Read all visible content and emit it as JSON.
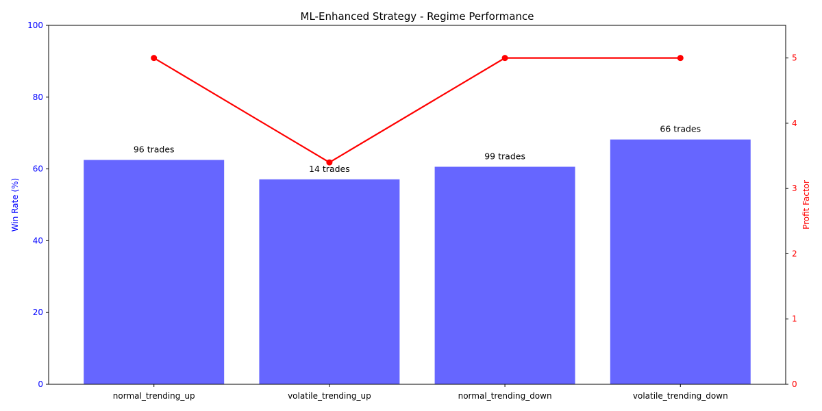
{
  "chart_data": {
    "type": "bar",
    "title": "ML-Enhanced Strategy - Regime Performance",
    "categories": [
      "normal_trending_up",
      "volatile_trending_up",
      "normal_trending_down",
      "volatile_trending_down"
    ],
    "series": [
      {
        "name": "",
        "axis": "left",
        "type": "bar",
        "color": "#6666ff",
        "values": [
          62.5,
          57.1,
          60.6,
          68.2
        ],
        "labels": [
          "96 trades",
          "14 trades",
          "99 trades",
          "66 trades"
        ]
      },
      {
        "name": "",
        "axis": "right",
        "type": "line",
        "color": "#ff0000",
        "values": [
          5.0,
          3.4,
          5.0,
          5.0
        ]
      }
    ],
    "ylabel": "Win Rate (%)",
    "ylabel_color": "#0000ff",
    "ylim": [
      0,
      100
    ],
    "yticks": [
      "0",
      "20",
      "40",
      "60",
      "80",
      "100"
    ],
    "y2label": "Profit Factor",
    "y2label_color": "#ff0000",
    "y2lim": [
      0,
      5.5
    ],
    "y2ticks": [
      "0",
      "1",
      "2",
      "3",
      "4",
      "5"
    ],
    "grid": false,
    "legend": "none"
  }
}
